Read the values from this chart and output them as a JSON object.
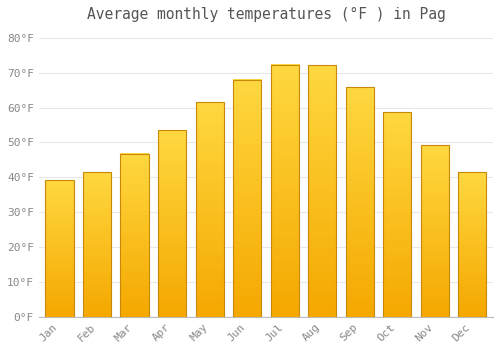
{
  "title": "Average monthly temperatures (°F ) in Pag",
  "months": [
    "Jan",
    "Feb",
    "Mar",
    "Apr",
    "May",
    "Jun",
    "Jul",
    "Aug",
    "Sep",
    "Oct",
    "Nov",
    "Dec"
  ],
  "values": [
    39.2,
    41.5,
    46.8,
    53.6,
    61.5,
    68.0,
    72.3,
    72.1,
    65.8,
    58.6,
    49.3,
    41.5
  ],
  "bar_color_bottom": "#F5A800",
  "bar_color_top": "#FFD840",
  "bar_edge_color": "#C8890A",
  "ylim": [
    0,
    83
  ],
  "yticks": [
    0,
    10,
    20,
    30,
    40,
    50,
    60,
    70,
    80
  ],
  "ytick_labels": [
    "0°F",
    "10°F",
    "20°F",
    "30°F",
    "40°F",
    "50°F",
    "60°F",
    "70°F",
    "80°F"
  ],
  "background_color": "#ffffff",
  "grid_color": "#e8e8e8",
  "title_fontsize": 10.5,
  "tick_fontsize": 8,
  "font_color": "#888888",
  "title_color": "#555555"
}
